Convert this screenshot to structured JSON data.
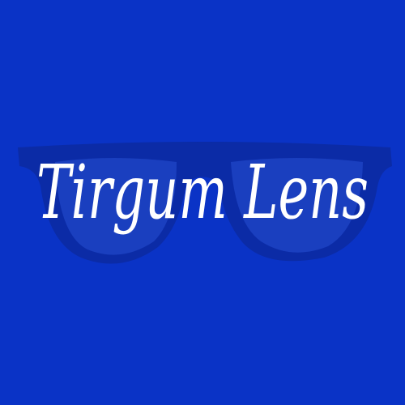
{
  "logo": {
    "text": "Tirgum Lens"
  }
}
